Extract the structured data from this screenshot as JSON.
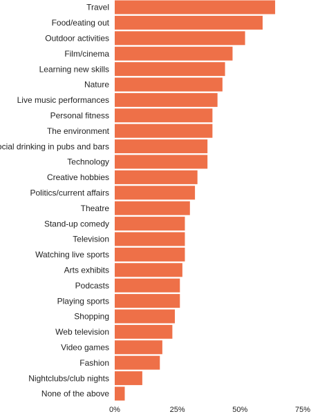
{
  "chart_data": {
    "type": "bar",
    "orientation": "horizontal",
    "categories": [
      "Travel",
      "Food/eating out",
      "Outdoor activities",
      "Film/cinema",
      "Learning new skills",
      "Nature",
      "Live music performances",
      "Personal fitness",
      "The environment",
      "Social drinking in pubs and bars",
      "Technology",
      "Creative hobbies",
      "Politics/current affairs",
      "Theatre",
      "Stand-up comedy",
      "Television",
      "Watching live sports",
      "Arts exhibits",
      "Podcasts",
      "Playing sports",
      "Shopping",
      "Web television",
      "Video games",
      "Fashion",
      "Nightclubs/club nights",
      "None of the above"
    ],
    "values": [
      64,
      59,
      52,
      47,
      44,
      43,
      41,
      39,
      39,
      37,
      37,
      33,
      32,
      30,
      28,
      28,
      28,
      27,
      26,
      26,
      24,
      23,
      19,
      18,
      11,
      4
    ],
    "xlim": [
      0,
      75
    ],
    "xticks": [
      0,
      25,
      50,
      75
    ],
    "xtick_labels": [
      "0%",
      "25%",
      "50%",
      "75%"
    ],
    "bar_color": "#ee7048",
    "grid": false,
    "title": "",
    "xlabel": "",
    "ylabel": ""
  }
}
